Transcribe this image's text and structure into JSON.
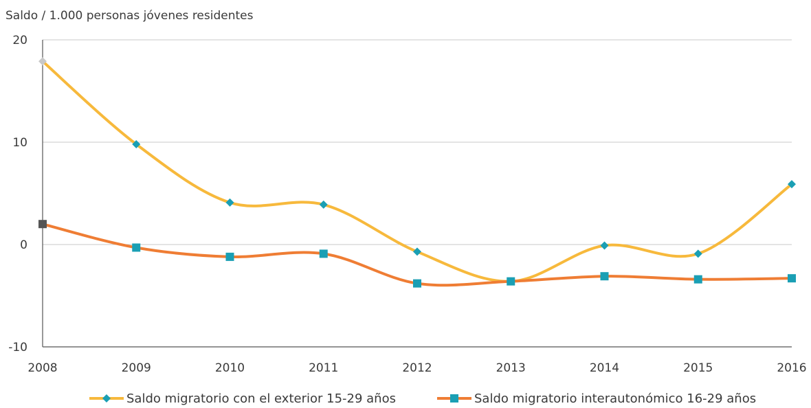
{
  "chart_data": {
    "type": "line",
    "title": "",
    "xlabel": "",
    "ylabel": "Saldo / 1.000 personas jóvenes residentes",
    "categories": [
      "2008",
      "2009",
      "2010",
      "2011",
      "2012",
      "2013",
      "2014",
      "2015",
      "2016"
    ],
    "y_ticks": [
      "20",
      "10",
      "0",
      "-10"
    ],
    "ylim": [
      -10,
      20
    ],
    "grid": true,
    "legend_position": "bottom",
    "series": [
      {
        "name": "Saldo migratorio con el exterior 15-29 años",
        "values": [
          17.9,
          9.8,
          4.1,
          3.9,
          -0.7,
          -3.6,
          -0.1,
          -0.9,
          5.9
        ],
        "line_color": "#f7b93c",
        "marker": "diamond",
        "marker_color": "#1a9fb4",
        "first_marker_color": "#c8c8c8"
      },
      {
        "name": "Saldo migratorio interautonómico 16-29 años",
        "values": [
          2.0,
          -0.3,
          -1.2,
          -0.9,
          -3.8,
          -3.6,
          -3.1,
          -3.4,
          -3.3
        ],
        "line_color": "#ef7d34",
        "marker": "square",
        "marker_color": "#1a9fb4",
        "first_marker_color": "#555555"
      }
    ]
  }
}
